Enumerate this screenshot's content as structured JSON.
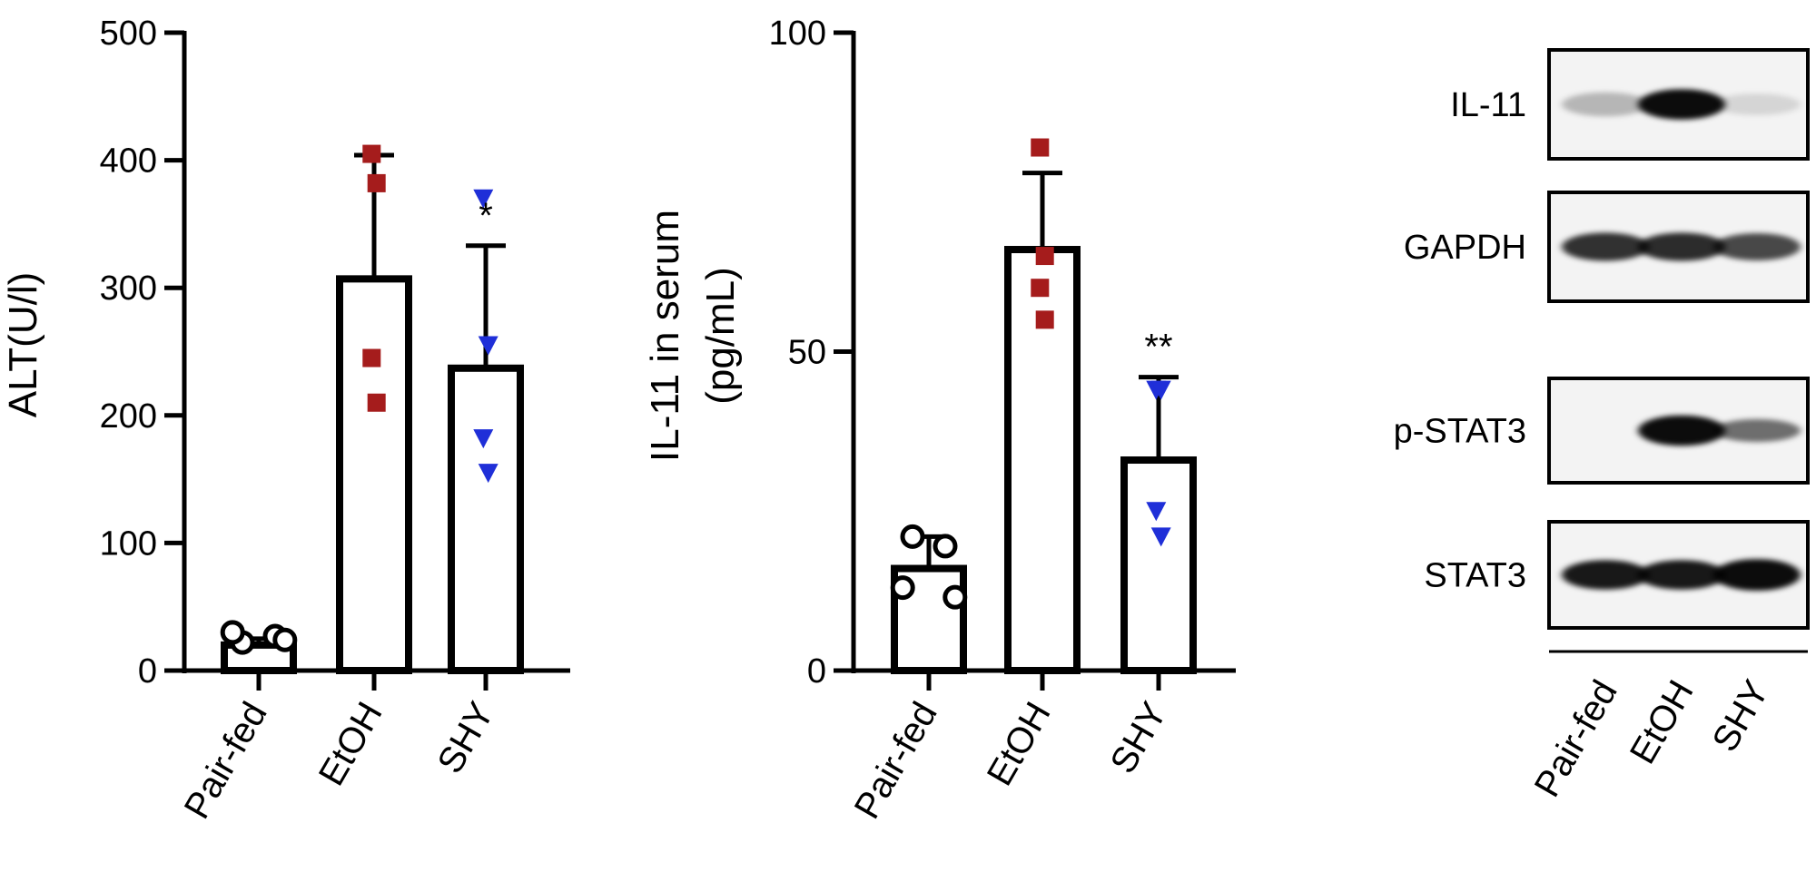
{
  "chart_data": [
    {
      "type": "bar",
      "id": "alt",
      "ylabel": "ALT(U/l)",
      "ylim": [
        0,
        500
      ],
      "yticks": [
        0,
        100,
        200,
        300,
        400,
        500
      ],
      "categories": [
        "Pair-fed",
        "EtOH",
        "SHY"
      ],
      "values": [
        20,
        307,
        237
      ],
      "errors": [
        5,
        97,
        96
      ],
      "significance": [
        "",
        "",
        "*"
      ],
      "points": [
        [
          22,
          27,
          30,
          24
        ],
        [
          405,
          382,
          245,
          210
        ],
        [
          370,
          255,
          182,
          155
        ]
      ],
      "marker_shapes": [
        "circle",
        "square",
        "triangle-down"
      ],
      "marker_colors": [
        "#000000",
        "#a51c1c",
        "#1f2fd8"
      ]
    },
    {
      "type": "bar",
      "id": "il11",
      "ylabel": [
        "IL-11 in serum",
        "(pg/mL)"
      ],
      "ylim": [
        0,
        100
      ],
      "yticks": [
        0,
        50,
        100
      ],
      "categories": [
        "Pair-fed",
        "EtOH",
        "SHY"
      ],
      "values": [
        16,
        66,
        33
      ],
      "errors": [
        5,
        12,
        13
      ],
      "significance": [
        "",
        "",
        "**"
      ],
      "points": [
        [
          21,
          19.5,
          13,
          11.5
        ],
        [
          82,
          65,
          60,
          55
        ],
        [
          44,
          44,
          25,
          21
        ]
      ],
      "marker_shapes": [
        "circle",
        "square",
        "triangle-down"
      ],
      "marker_colors": [
        "#000000",
        "#a51c1c",
        "#1f2fd8"
      ]
    }
  ],
  "blot": {
    "lanes": [
      "Pair-fed",
      "EtOH",
      "SHY"
    ],
    "rows": [
      {
        "label": "IL-11",
        "intensity": [
          0.25,
          0.95,
          0.12
        ],
        "thickness": [
          0.6,
          0.9,
          0.5
        ]
      },
      {
        "label": "GAPDH",
        "intensity": [
          0.8,
          0.82,
          0.7
        ],
        "thickness": [
          0.8,
          0.8,
          0.75
        ]
      },
      {
        "label": "p-STAT3",
        "intensity": [
          0.0,
          0.95,
          0.55
        ],
        "thickness": [
          0.0,
          0.9,
          0.55
        ]
      },
      {
        "label": "STAT3",
        "intensity": [
          0.9,
          0.9,
          0.95
        ],
        "thickness": [
          0.85,
          0.85,
          0.95
        ]
      }
    ]
  }
}
